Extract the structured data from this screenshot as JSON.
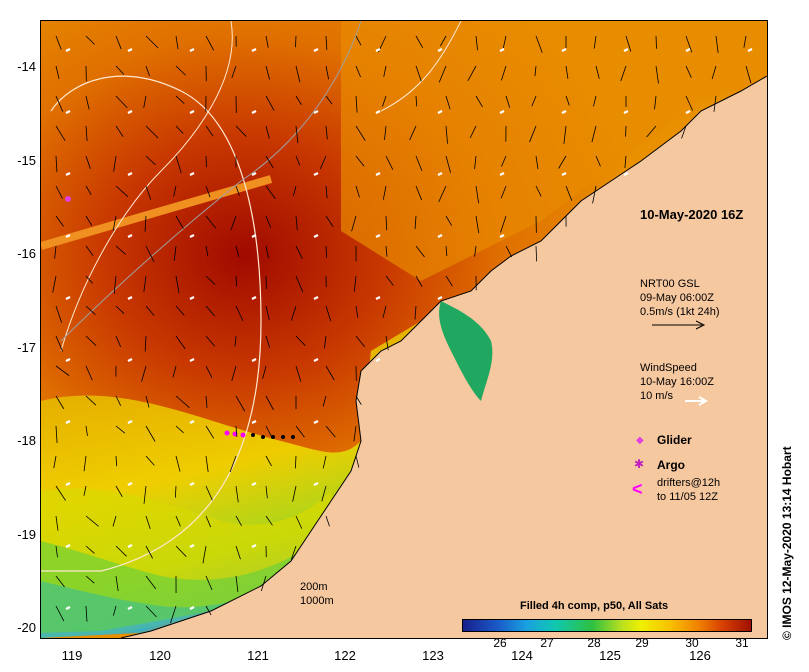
{
  "map": {
    "y_axis_labels": [
      "-14",
      "-15",
      "-16",
      "-17",
      "-18",
      "-19",
      "-20"
    ],
    "x_axis_labels": [
      "119",
      "120",
      "121",
      "122",
      "123",
      "124",
      "125",
      "126"
    ],
    "datetime": "10-May-2020 16Z",
    "currents": {
      "line1": "NRT00 GSL",
      "line2": "09-May 06:00Z",
      "line3": "0.5m/s (1kt 24h)"
    },
    "wind": {
      "line1": "WindSpeed",
      "line2": "10-May 16:00Z",
      "line3": "10 m/s"
    },
    "legend": {
      "glider": "Glider",
      "argo": "Argo",
      "drifters_line1": "drifters@12h",
      "drifters_line2": "to 11/05 12Z"
    },
    "depth_contours": {
      "line1": "200m",
      "line2": "1000m"
    },
    "colorbar": {
      "title": "Filled 4h comp, p50, All Sats",
      "ticks": [
        "26",
        "27",
        "28",
        "29",
        "30",
        "31"
      ]
    },
    "credit": "© IMOS 12-May-2020 13:14 Hobart",
    "colors": {
      "land": "#f6c8a0",
      "glider": "#e040e0",
      "argo": "#c020c0",
      "drifters": "#ff00ff"
    }
  }
}
